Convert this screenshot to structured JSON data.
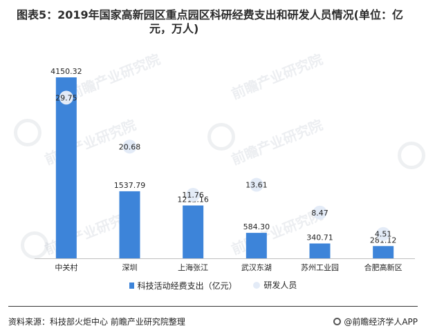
{
  "title": "图表5：2019年国家高新园区重点园区科研经费支出和研发人员情况(单位：亿",
  "title_line2": "元，万人)",
  "watermark": "前瞻产业研究院",
  "legend": {
    "bar_label": "科技活动经费支出（亿元）",
    "dot_label": "研发人员"
  },
  "source": "资料来源：科技部火炬中心 前瞻产业研究院整理",
  "brand": "@前瞻经济学人APP",
  "colors": {
    "bar": "#3d84d9",
    "dot": "#e3ebf7"
  },
  "chart_data": {
    "type": "bar",
    "categories": [
      "中关村",
      "深圳",
      "上海张江",
      "武汉东湖",
      "苏州工业园",
      "合肥高新区"
    ],
    "series": [
      {
        "name": "科技活动经费支出（亿元）",
        "type": "bar",
        "values": [
          4150.32,
          1537.79,
          1212.16,
          584.3,
          340.71,
          281.12
        ]
      },
      {
        "name": "研发人员",
        "type": "scatter",
        "values": [
          29.75,
          20.68,
          11.76,
          13.61,
          8.47,
          4.51
        ]
      }
    ],
    "bar_labels": [
      "4150.32",
      "1537.79",
      "1212.16",
      "584.30",
      "340.71",
      "281.12"
    ],
    "dot_labels": [
      "29.75",
      "20.68",
      "11.76",
      "13.61",
      "8.47",
      "4.51"
    ],
    "ylim_bar": [
      0,
      4150.32
    ],
    "ylim_dot": [
      0,
      33.5
    ],
    "grid": false,
    "legend_position": "bottom"
  }
}
